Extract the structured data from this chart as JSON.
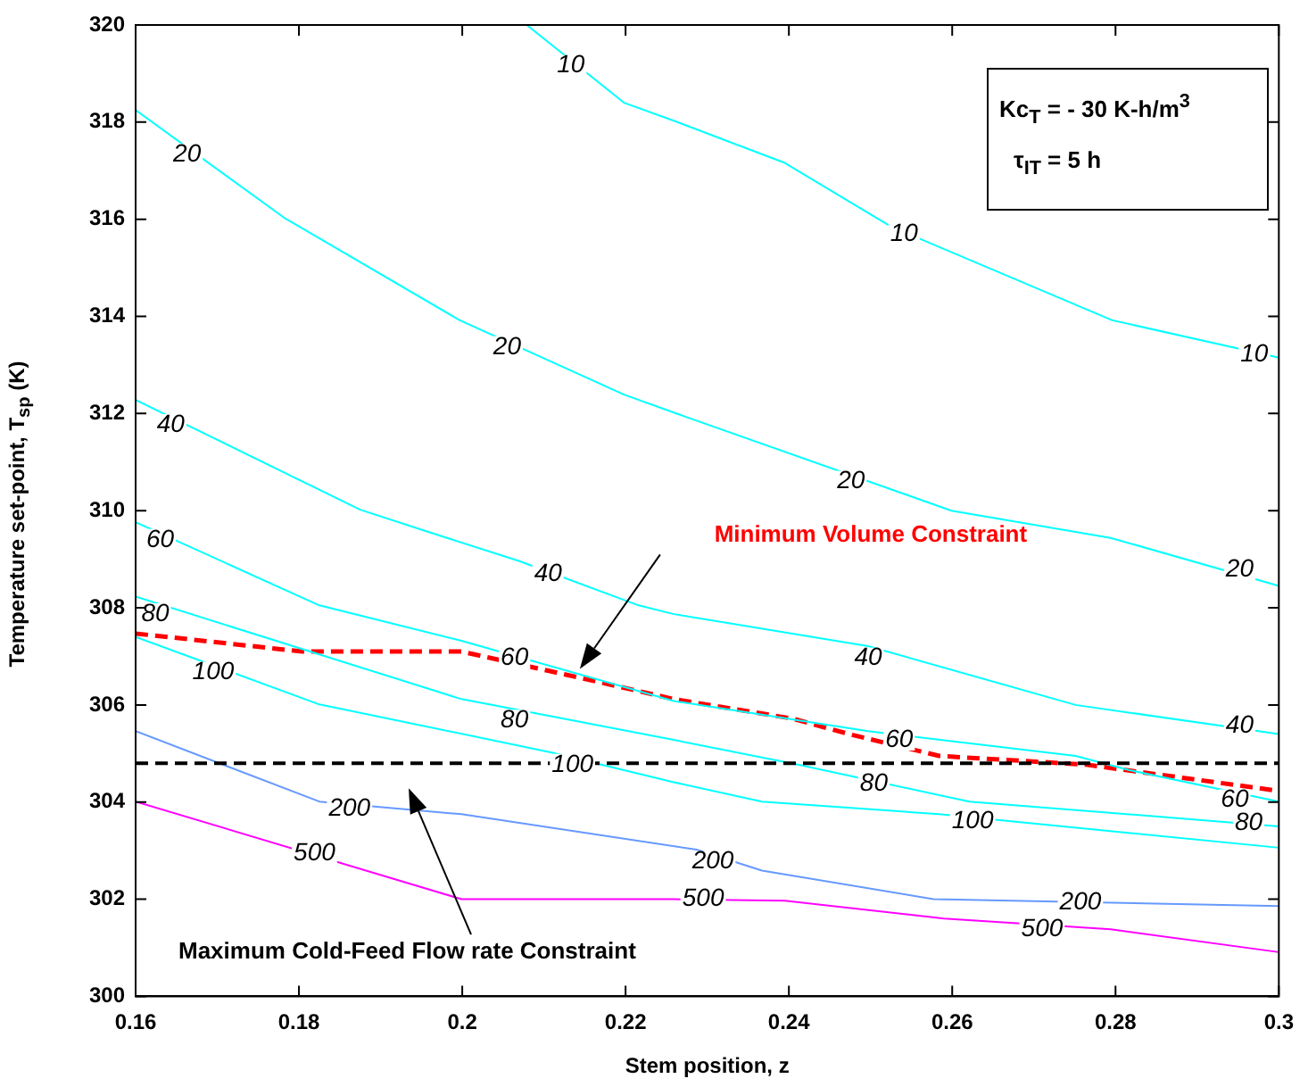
{
  "chart_data": {
    "type": "line",
    "xlabel": "Stem position, z",
    "ylabel": "Temperature set-point, T$_{sp}$  (K)",
    "xlim": [
      0.16,
      0.3
    ],
    "xticks": [
      0.16,
      0.18,
      0.2,
      0.22,
      0.24,
      0.26,
      0.28,
      0.3
    ],
    "ylim": [
      300,
      320
    ],
    "yticks": [
      300,
      302,
      304,
      306,
      308,
      310,
      312,
      314,
      316,
      318,
      320
    ],
    "legend": false,
    "marker": "none",
    "line_style": "solid",
    "series": [
      {
        "color": "#00ffff",
        "x": [
          0.2079,
          0.2198,
          0.2259,
          0.2395,
          0.2525,
          0.2796,
          0.3
        ],
        "values": [
          320,
          318.4,
          318.03,
          317.16,
          315.85,
          313.92,
          313.15
        ]
      },
      {
        "color": "#00ffff",
        "x": [
          0.16,
          0.1782,
          0.1997,
          0.2198,
          0.2259,
          0.2599,
          0.2794,
          0.3
        ],
        "values": [
          318.25,
          316.03,
          313.92,
          312.39,
          312.02,
          310.0,
          309.44,
          308.45
        ]
      },
      {
        "color": "#00ffff",
        "x": [
          0.16,
          0.1875,
          0.1955,
          0.207,
          0.2216,
          0.2259,
          0.2497,
          0.2751,
          0.3
        ],
        "values": [
          312.28,
          310.02,
          309.58,
          308.96,
          308.05,
          307.87,
          307.21,
          306.0,
          305.4
        ]
      },
      {
        "color": "#00ffff",
        "x": [
          0.16,
          0.1825,
          0.1999,
          0.2259,
          0.2497,
          0.2751,
          0.2816,
          0.3
        ],
        "values": [
          309.76,
          308.05,
          307.32,
          306.08,
          305.46,
          304.95,
          304.66,
          304.01
        ]
      },
      {
        "color": "#00ffff",
        "x": [
          0.16,
          0.1999,
          0.2259,
          0.2411,
          0.2621,
          0.3
        ],
        "values": [
          308.23,
          306.12,
          305.28,
          304.77,
          304.01,
          303.5
        ]
      },
      {
        "color": "#00ffff",
        "x": [
          0.16,
          0.1825,
          0.2107,
          0.2259,
          0.2367,
          0.2584,
          0.3
        ],
        "values": [
          307.4,
          306.01,
          305.03,
          304.41,
          304.01,
          303.75,
          303.06
        ]
      },
      {
        "color": "#6699ff",
        "x": [
          0.16,
          0.1825,
          0.1999,
          0.2287,
          0.2367,
          0.2577,
          0.3
        ],
        "values": [
          305.46,
          304.01,
          303.75,
          303.02,
          302.59,
          302.0,
          301.86
        ]
      },
      {
        "color": "#ff00ff",
        "x": [
          0.16,
          0.1999,
          0.2259,
          0.2395,
          0.259,
          0.2794,
          0.3
        ],
        "values": [
          304.01,
          302.0,
          302.0,
          301.97,
          301.6,
          301.38,
          300.91
        ]
      },
      {
        "name": "Minimum Volume Constraint",
        "color": "#ff0000",
        "line_style": "dashed",
        "x": [
          0.16,
          0.1804,
          0.1999,
          0.2144,
          0.2259,
          0.2404,
          0.2476,
          0.2584,
          0.2764,
          0.3
        ],
        "values": [
          307.47,
          307.1,
          307.1,
          306.56,
          306.12,
          305.72,
          305.39,
          304.95,
          304.77,
          304.23
        ]
      }
    ],
    "ref_lines": [
      {
        "axis": "y",
        "value": 304.8,
        "label": "Maximum Cold-Feed Flow rate Constraint",
        "color": "#000000",
        "line_style": "dashed"
      }
    ],
    "annotations": [
      "Kc$_{T}$ = - 30 K-h/m$^{3}$",
      "τ$_{IT}$ = 5 h",
      {
        "text": "10",
        "x": 0.2133,
        "y": 319.16
      },
      {
        "text": "10",
        "x": 0.2541,
        "y": 315.7
      },
      {
        "text": "10",
        "x": 0.297,
        "y": 313.22
      },
      {
        "text": "20",
        "x": 0.1663,
        "y": 317.34
      },
      {
        "text": "20",
        "x": 0.2055,
        "y": 313.37
      },
      {
        "text": "20",
        "x": 0.2476,
        "y": 310.6
      },
      {
        "text": "20",
        "x": 0.2952,
        "y": 308.78
      },
      {
        "text": "40",
        "x": 0.1643,
        "y": 311.77
      },
      {
        "text": "40",
        "x": 0.2105,
        "y": 308.7
      },
      {
        "text": "40",
        "x": 0.2497,
        "y": 306.96
      },
      {
        "text": "40",
        "x": 0.2952,
        "y": 305.57
      },
      {
        "text": "60",
        "x": 0.163,
        "y": 309.4
      },
      {
        "text": "60",
        "x": 0.2064,
        "y": 306.96
      },
      {
        "text": "60",
        "x": 0.2535,
        "y": 305.28
      },
      {
        "text": "60",
        "x": 0.2946,
        "y": 304.04
      },
      {
        "text": "80",
        "x": 0.1624,
        "y": 307.87
      },
      {
        "text": "80",
        "x": 0.2064,
        "y": 305.68
      },
      {
        "text": "80",
        "x": 0.2504,
        "y": 304.37
      },
      {
        "text": "80",
        "x": 0.2963,
        "y": 303.57
      },
      {
        "text": "100",
        "x": 0.1695,
        "y": 306.67
      },
      {
        "text": "100",
        "x": 0.2135,
        "y": 304.77
      },
      {
        "text": "100",
        "x": 0.2625,
        "y": 303.6
      },
      {
        "text": "200",
        "x": 0.1862,
        "y": 303.86
      },
      {
        "text": "200",
        "x": 0.2307,
        "y": 302.77
      },
      {
        "text": "200",
        "x": 0.2757,
        "y": 301.93
      },
      {
        "text": "500",
        "x": 0.1819,
        "y": 302.95
      },
      {
        "text": "500",
        "x": 0.2295,
        "y": 302.0
      },
      {
        "text": "500",
        "x": 0.271,
        "y": 301.38
      }
    ]
  }
}
